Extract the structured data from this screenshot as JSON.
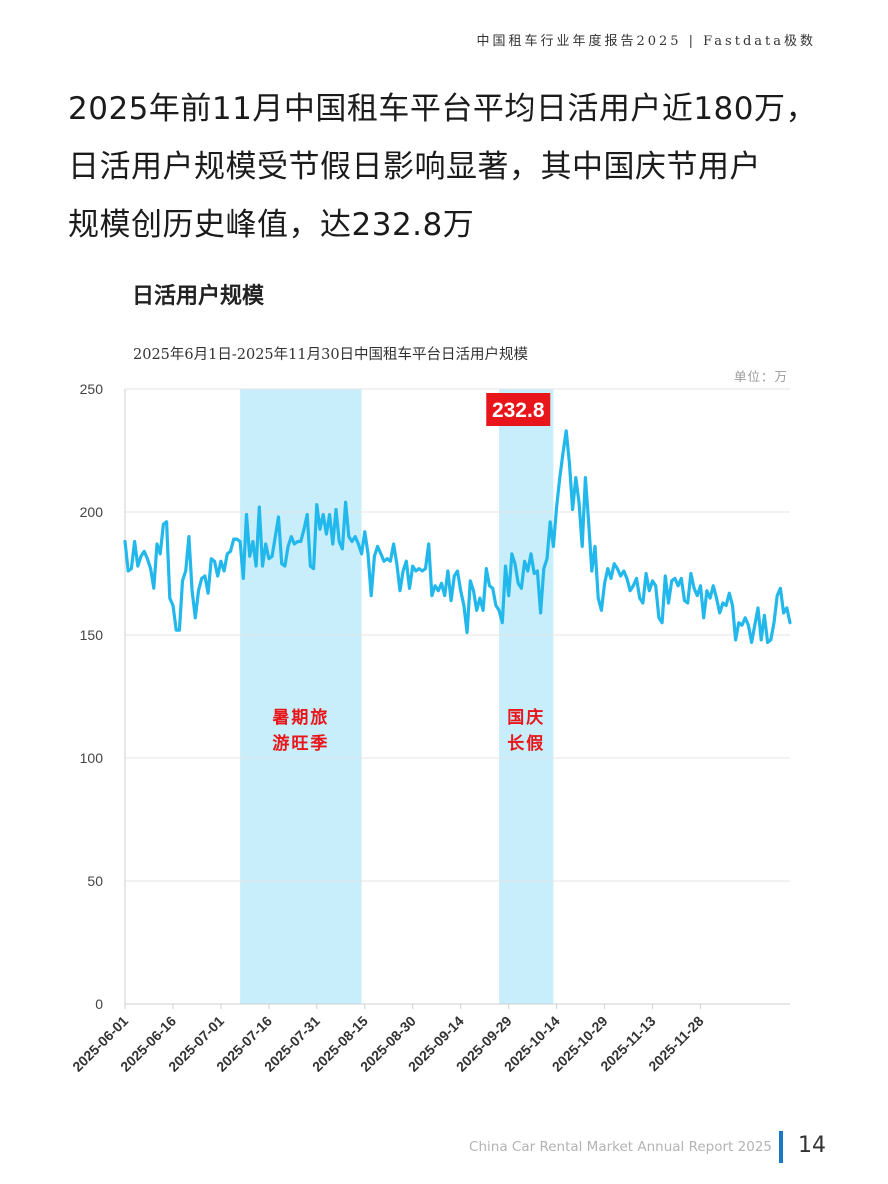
{
  "header": {
    "report_tag": "中国租车行业年度报告2025 | Fastdata极数"
  },
  "headline": {
    "line1": "2025年前11月中国租车平台平均日活用户近180万，",
    "line2": "日活用户规模受节假日影响显著，其中国庆节用户",
    "line3": "规模创历史峰值，达232.8万"
  },
  "section_title": "日活用户规模",
  "chart_data": {
    "type": "line",
    "subtitle": "2025年6月1日-2025年11月30日中国租车平台日活用户规模",
    "unit": "单位：万",
    "ylim": [
      0,
      250
    ],
    "yticks": [
      0,
      50,
      100,
      150,
      200,
      250
    ],
    "xticks": [
      "2025-06-01",
      "2025-06-16",
      "2025-07-01",
      "2025-07-16",
      "2025-07-31",
      "2025-08-15",
      "2025-08-30",
      "2025-09-14",
      "2025-09-29",
      "2025-10-14",
      "2025-10-29",
      "2025-11-13",
      "2025-11-28"
    ],
    "start_date": "2025-06-01",
    "grid": true,
    "color": "#22b8ec",
    "band_color": "#c9eefb",
    "highlight_color": "#e8161a",
    "peak": {
      "date": "2025-10-02",
      "value": 232.8,
      "label": "232.8"
    },
    "bands": [
      {
        "start": "2025-07-07",
        "end": "2025-08-14",
        "label_line1": "暑期旅",
        "label_line2": "游旺季"
      },
      {
        "start": "2025-09-26",
        "end": "2025-10-13",
        "label_line1": "国庆",
        "label_line2": "长假"
      }
    ],
    "values": [
      188,
      176,
      177,
      188,
      178,
      182,
      184,
      181,
      177,
      169,
      187,
      183,
      195,
      196,
      165,
      162,
      152,
      152,
      172,
      176,
      190,
      168,
      157,
      168,
      173,
      174,
      167,
      181,
      180,
      174,
      180,
      176,
      183,
      184,
      189,
      189,
      188,
      173,
      199,
      182,
      188,
      178,
      202,
      178,
      187,
      181,
      182,
      190,
      198,
      179,
      178,
      186,
      190,
      187,
      188,
      188,
      193,
      199,
      178,
      177,
      203,
      193,
      199,
      191,
      199,
      187,
      201,
      188,
      185,
      204,
      190,
      188,
      190,
      187,
      183,
      192,
      183,
      166,
      182,
      186,
      183,
      180,
      181,
      180,
      187,
      179,
      168,
      176,
      180,
      169,
      178,
      176,
      177,
      176,
      177,
      187,
      166,
      170,
      168,
      171,
      166,
      176,
      164,
      174,
      176,
      168,
      162,
      151,
      172,
      168,
      160,
      165,
      160,
      177,
      170,
      169,
      162,
      160,
      155,
      178,
      166,
      183,
      179,
      171,
      169,
      180,
      176,
      183,
      175,
      176,
      159,
      177,
      181,
      196,
      186,
      202,
      214,
      224,
      233,
      220,
      201,
      214,
      204,
      186,
      214,
      196,
      176,
      186,
      165,
      160,
      171,
      177,
      173,
      179,
      177,
      174,
      176,
      173,
      168,
      170,
      173,
      165,
      163,
      175,
      168,
      172,
      170,
      157,
      155,
      174,
      163,
      172,
      173,
      170,
      173,
      164,
      163,
      175,
      169,
      166,
      170,
      157,
      168,
      165,
      170,
      165,
      159,
      163,
      162,
      167,
      162,
      148,
      155,
      154,
      157,
      154,
      147,
      154,
      161,
      148,
      158,
      147,
      148,
      155,
      166,
      169,
      159,
      161,
      155
    ]
  },
  "footer": {
    "report_name": "China Car Rental Market Annual Report 2025",
    "page_number": "14"
  }
}
